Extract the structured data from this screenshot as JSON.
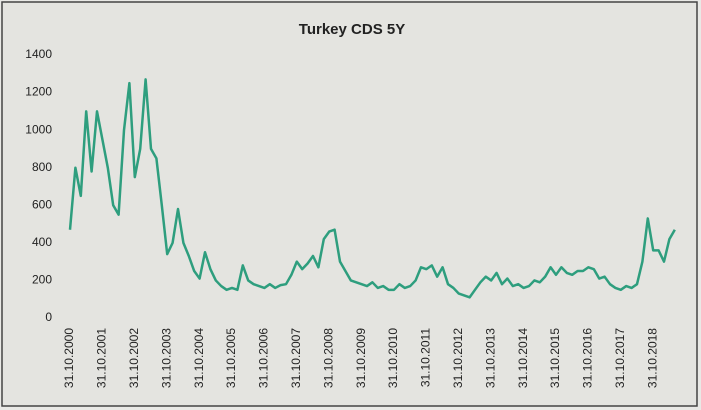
{
  "chart_data": {
    "type": "line",
    "title": "Turkey CDS 5Y",
    "categories": [
      "31.10.2000",
      null,
      null,
      null,
      null,
      null,
      "31.10.2001",
      null,
      null,
      null,
      null,
      null,
      "31.10.2002",
      null,
      null,
      null,
      null,
      null,
      "31.10.2003",
      null,
      null,
      null,
      null,
      null,
      "31.10.2004",
      null,
      null,
      null,
      null,
      null,
      "31.10.2005",
      null,
      null,
      null,
      null,
      null,
      "31.10.2006",
      null,
      null,
      null,
      null,
      null,
      "31.10.2007",
      null,
      null,
      null,
      null,
      null,
      "31.10.2008",
      null,
      null,
      null,
      null,
      null,
      "31.10.2009",
      null,
      null,
      null,
      null,
      null,
      "31.10.2010",
      null,
      null,
      null,
      null,
      null,
      "31.10.2011",
      null,
      null,
      null,
      null,
      null,
      "31.10.2012",
      null,
      null,
      null,
      null,
      null,
      "31.10.2013",
      null,
      null,
      null,
      null,
      null,
      "31.10.2014",
      null,
      null,
      null,
      null,
      null,
      "31.10.2015",
      null,
      null,
      null,
      null,
      null,
      "31.10.2016",
      null,
      null,
      null,
      null,
      null,
      "31.10.2017",
      null,
      null,
      null,
      null,
      null,
      "31.10.2018",
      null,
      null,
      null,
      null
    ],
    "values": [
      470,
      800,
      650,
      1100,
      780,
      1100,
      950,
      800,
      600,
      550,
      1000,
      1250,
      750,
      900,
      1270,
      900,
      850,
      600,
      340,
      400,
      580,
      400,
      330,
      250,
      210,
      350,
      260,
      200,
      170,
      150,
      160,
      150,
      280,
      200,
      180,
      170,
      160,
      180,
      160,
      175,
      180,
      230,
      300,
      260,
      290,
      330,
      270,
      420,
      460,
      470,
      300,
      250,
      200,
      190,
      180,
      170,
      190,
      160,
      170,
      150,
      150,
      180,
      160,
      170,
      200,
      270,
      260,
      280,
      220,
      270,
      180,
      160,
      130,
      120,
      110,
      150,
      190,
      220,
      200,
      240,
      180,
      210,
      170,
      180,
      160,
      170,
      200,
      190,
      220,
      270,
      230,
      270,
      240,
      230,
      250,
      250,
      270,
      260,
      210,
      220,
      180,
      160,
      150,
      170,
      160,
      180,
      300,
      530,
      360,
      360,
      300,
      420,
      470
    ],
    "color": "#2e9e7e",
    "ylim": [
      0,
      1400
    ],
    "yticks": [
      0,
      200,
      400,
      600,
      800,
      1000,
      1200,
      1400
    ],
    "grid": false
  }
}
